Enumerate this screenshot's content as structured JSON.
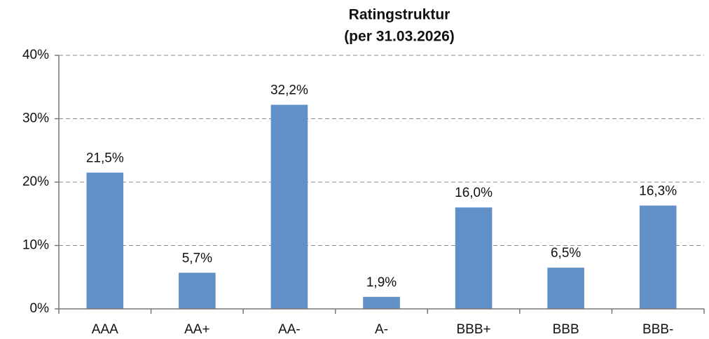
{
  "chart_data": {
    "type": "bar",
    "title": "Ratingstruktur",
    "subtitle": "(per 31.03.2026)",
    "categories": [
      "AAA",
      "AA+",
      "AA-",
      "A-",
      "BBB+",
      "BBB",
      "BBB-"
    ],
    "values": [
      21.5,
      5.7,
      32.2,
      1.9,
      16.0,
      6.5,
      16.3
    ],
    "value_labels": [
      "21,5%",
      "5,7%",
      "32,2%",
      "1,9%",
      "16,0%",
      "6,5%",
      "16,3%"
    ],
    "color": "#6190c8",
    "ylim": [
      0,
      40
    ],
    "yticks": [
      {
        "value": 0,
        "label": "0%"
      },
      {
        "value": 10,
        "label": "10%"
      },
      {
        "value": 20,
        "label": "20%"
      },
      {
        "value": 30,
        "label": "30%"
      },
      {
        "value": 40,
        "label": "40%"
      }
    ],
    "grid": true
  }
}
